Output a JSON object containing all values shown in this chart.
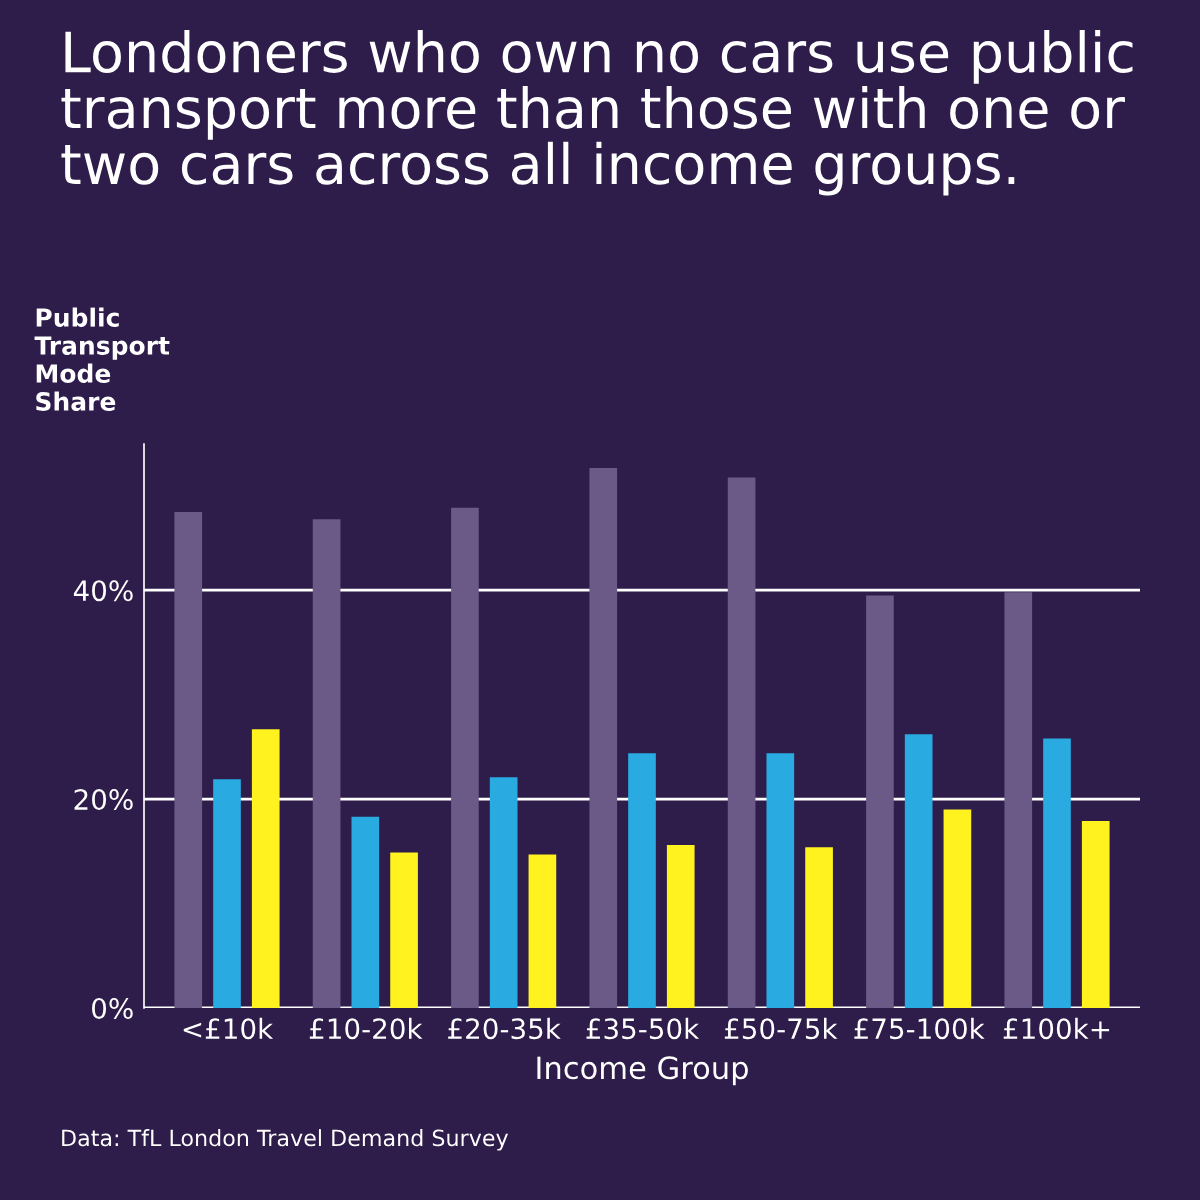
{
  "chart_data": {
    "type": "bar",
    "title": "Londoners who own no cars use public transport more than those with one or two cars across all income groups.",
    "ylabel": "Public\nTransport\nMode\nShare",
    "xlabel": "Income Group",
    "categories": [
      "<£10k",
      "£10-20k",
      "£20-35k",
      "£35-50k",
      "£50-75k",
      "£75-100k",
      "£100k+"
    ],
    "series": [
      {
        "color": "#6b5a88",
        "values": [
          47.5,
          46.8,
          47.9,
          51.7,
          50.8,
          39.5,
          39.8
        ]
      },
      {
        "color": "#29abe2",
        "values": [
          21.9,
          18.3,
          22.1,
          24.4,
          24.4,
          26.2,
          25.8
        ]
      },
      {
        "color": "#fff21e",
        "values": [
          26.7,
          14.9,
          14.7,
          15.6,
          15.4,
          19.0,
          17.9
        ]
      }
    ],
    "ylim": [
      0,
      54
    ],
    "yticks": [
      {
        "value": 0,
        "label": "0%"
      },
      {
        "value": 20,
        "label": "20%"
      },
      {
        "value": 40,
        "label": "40%"
      }
    ],
    "grid": "y",
    "annotations": [
      "Data: TfL London Travel Demand Survey"
    ]
  }
}
